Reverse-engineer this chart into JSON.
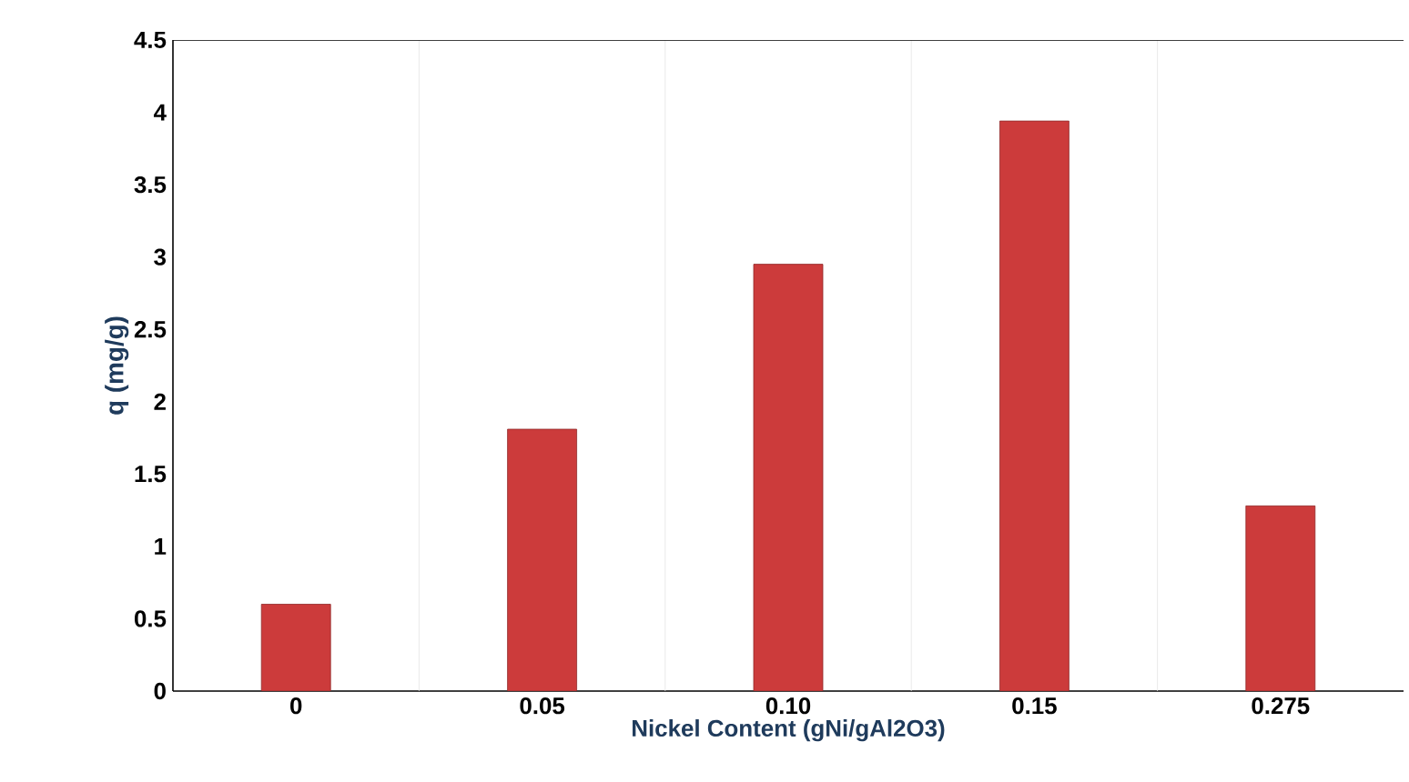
{
  "chart_data": {
    "type": "bar",
    "xlabel": "Nickel Content (gNi/gAl2O3)",
    "ylabel": "q (mg/g)",
    "categories": [
      "0",
      "0.05",
      "0.10",
      "0.15",
      "0.275"
    ],
    "values": [
      0.6,
      1.81,
      2.95,
      3.94,
      1.28
    ],
    "color": "#cc3b3b",
    "ylim": [
      0,
      4.5
    ],
    "yticks": [
      0,
      0.5,
      1,
      1.5,
      2,
      2.5,
      3,
      3.5,
      4,
      4.5
    ],
    "grid": "x"
  }
}
